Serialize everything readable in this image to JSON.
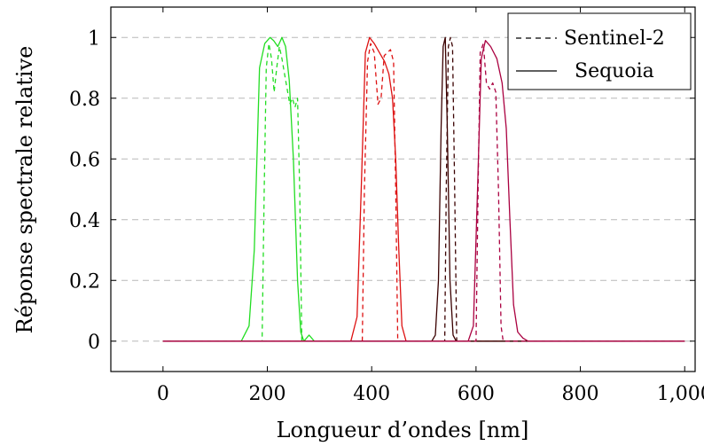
{
  "chart_data": {
    "type": "line",
    "xlabel": "Longueur d’ondes [nm]",
    "ylabel": "Réponse spectrale relative",
    "xlim": [
      -100,
      1020
    ],
    "ylim": [
      -0.1,
      1.1
    ],
    "xticks": [
      0,
      200,
      400,
      600,
      800,
      1000
    ],
    "xtick_labels": [
      "0",
      "200",
      "400",
      "600",
      "800",
      "1,000"
    ],
    "yticks": [
      0,
      0.2,
      0.4,
      0.6,
      0.8,
      1
    ],
    "ytick_labels": [
      "0",
      "0.2",
      "0.4",
      "0.6",
      "0.8",
      "1"
    ],
    "grid": "horizontal-dashed",
    "legend_position": "top-right",
    "legend": [
      {
        "label": "Sentinel-2",
        "style": "dashed"
      },
      {
        "label": "Sequoia",
        "style": "solid"
      }
    ],
    "series": [
      {
        "sensor": "Sequoia",
        "style": "solid",
        "color": "#22dd22",
        "x": [
          0,
          150,
          165,
          175,
          185,
          195,
          205,
          212,
          220,
          228,
          235,
          242,
          250,
          258,
          264,
          270,
          280,
          290,
          300,
          1000
        ],
        "y": [
          0,
          0,
          0.05,
          0.3,
          0.9,
          0.98,
          1.0,
          0.99,
          0.97,
          1.0,
          0.97,
          0.86,
          0.6,
          0.2,
          0.03,
          0.0,
          0.02,
          0.0,
          0,
          0
        ]
      },
      {
        "sensor": "Sentinel-2",
        "style": "dashed",
        "color": "#22dd22",
        "x": [
          0,
          190,
          194,
          198,
          203,
          208,
          213,
          218,
          223,
          228,
          233,
          238,
          243,
          248,
          253,
          258,
          262,
          266,
          1000
        ],
        "y": [
          0,
          0,
          0.5,
          0.9,
          0.98,
          0.93,
          0.82,
          0.9,
          0.97,
          0.93,
          0.88,
          0.83,
          0.78,
          0.8,
          0.77,
          0.8,
          0.5,
          0,
          0
        ]
      },
      {
        "sensor": "Sequoia",
        "style": "solid",
        "color": "#dd1111",
        "x": [
          0,
          360,
          372,
          380,
          388,
          396,
          405,
          415,
          425,
          433,
          440,
          446,
          452,
          458,
          466,
          1000
        ],
        "y": [
          0,
          0,
          0.08,
          0.5,
          0.95,
          1.0,
          0.98,
          0.95,
          0.92,
          0.88,
          0.8,
          0.6,
          0.3,
          0.05,
          0,
          0
        ]
      },
      {
        "sensor": "Sentinel-2",
        "style": "dashed",
        "color": "#dd1111",
        "x": [
          0,
          382,
          386,
          392,
          398,
          405,
          412,
          418,
          424,
          430,
          436,
          442,
          446,
          450,
          1000
        ],
        "y": [
          0,
          0,
          0.5,
          0.92,
          0.98,
          0.95,
          0.78,
          0.8,
          0.94,
          0.95,
          0.96,
          0.92,
          0.5,
          0,
          0
        ]
      },
      {
        "sensor": "Sequoia",
        "style": "solid",
        "color": "#3a0000",
        "x": [
          0,
          515,
          522,
          528,
          533,
          537,
          541,
          545,
          550,
          556,
          562,
          1000
        ],
        "y": [
          0,
          0,
          0.02,
          0.2,
          0.7,
          0.97,
          1.0,
          0.7,
          0.2,
          0.02,
          0,
          0
        ]
      },
      {
        "sensor": "Sentinel-2",
        "style": "dashed",
        "color": "#3a0000",
        "x": [
          0,
          540,
          543,
          547,
          551,
          555,
          559,
          563,
          1000
        ],
        "y": [
          0,
          0,
          0.5,
          0.97,
          1.0,
          0.97,
          0.5,
          0,
          0
        ]
      },
      {
        "sensor": "Sequoia",
        "style": "solid",
        "color": "#aa0040",
        "x": [
          0,
          585,
          595,
          603,
          610,
          618,
          628,
          640,
          650,
          658,
          665,
          672,
          680,
          690,
          700,
          1000
        ],
        "y": [
          0,
          0,
          0.05,
          0.5,
          0.93,
          0.99,
          0.97,
          0.93,
          0.85,
          0.7,
          0.4,
          0.12,
          0.03,
          0.01,
          0,
          0
        ]
      },
      {
        "sensor": "Sentinel-2",
        "style": "dashed",
        "color": "#aa0040",
        "x": [
          0,
          600,
          604,
          608,
          614,
          620,
          626,
          632,
          638,
          643,
          648,
          652,
          1000
        ],
        "y": [
          0,
          0,
          0.5,
          0.95,
          0.98,
          0.85,
          0.83,
          0.85,
          0.82,
          0.5,
          0.05,
          0,
          0
        ]
      }
    ]
  }
}
